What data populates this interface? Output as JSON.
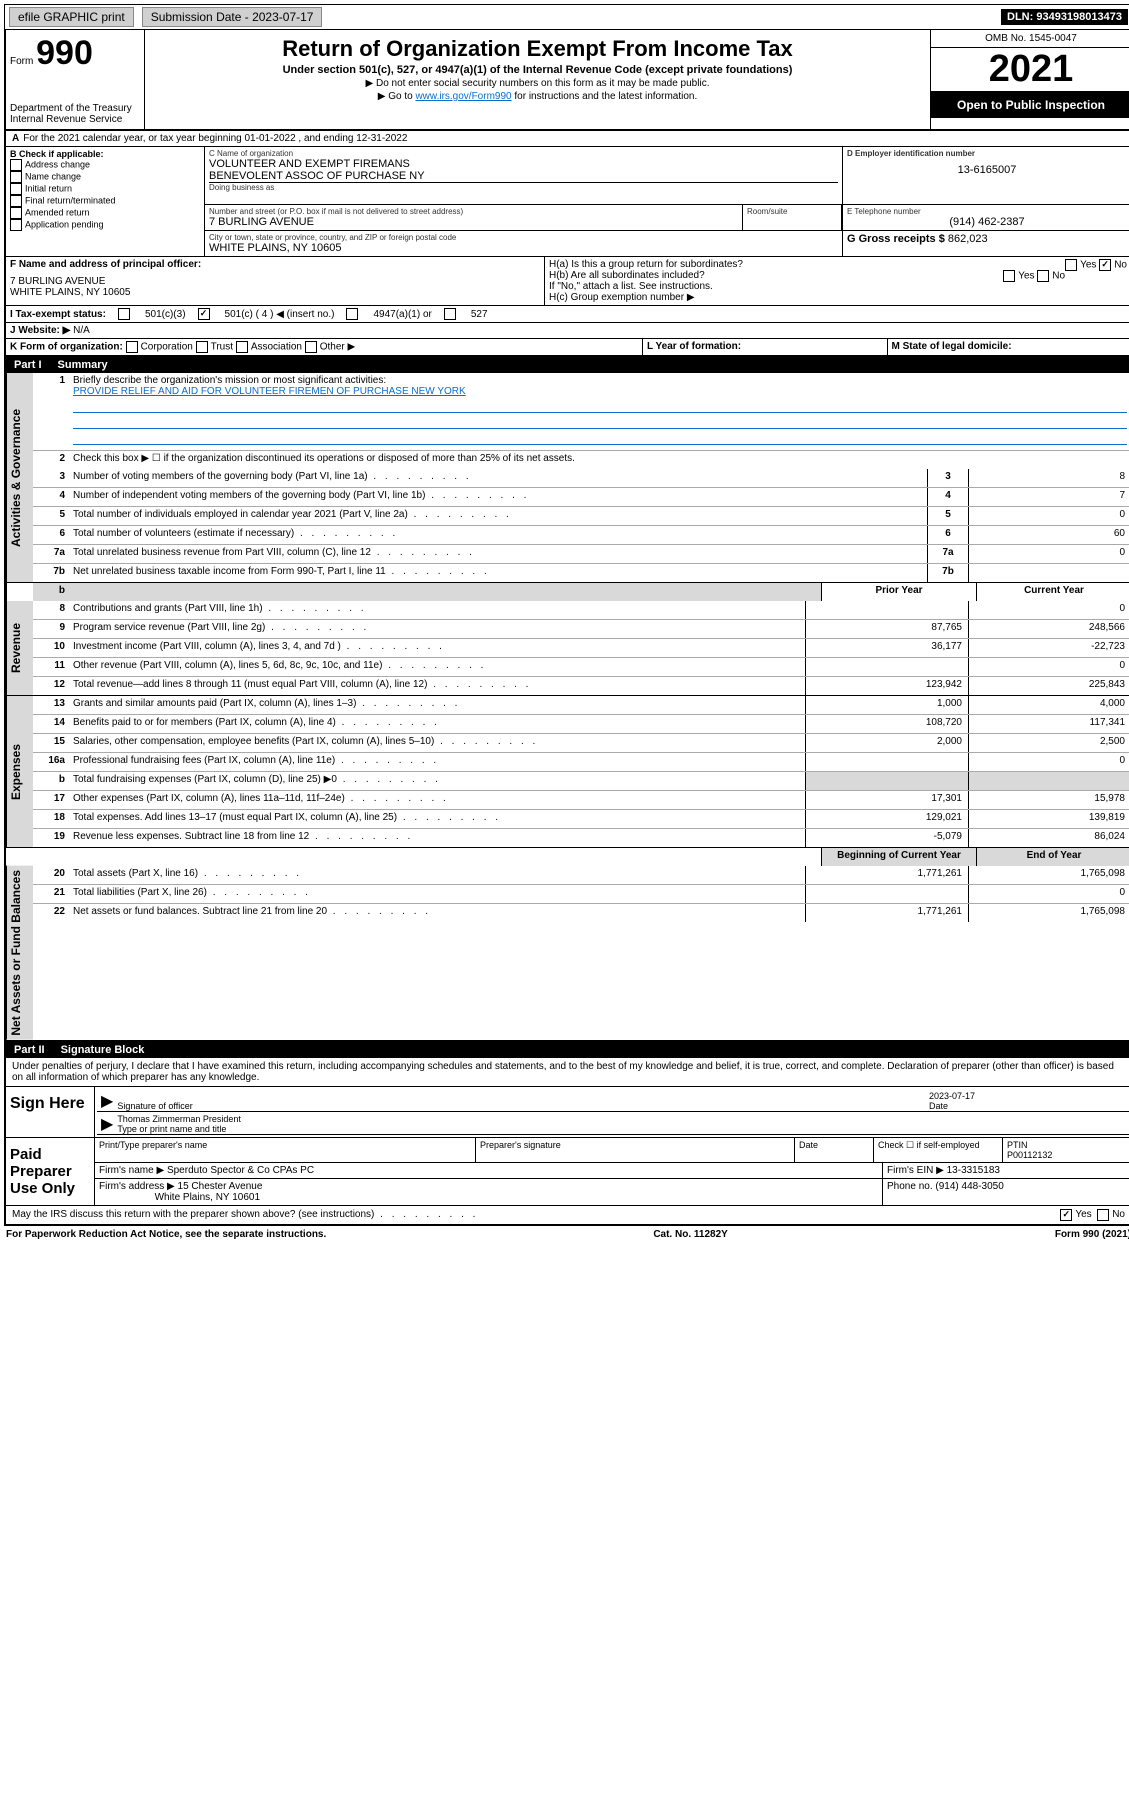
{
  "topbar": {
    "efile": "efile GRAPHIC print",
    "submission": "Submission Date - 2023-07-17",
    "dln": "DLN: 93493198013473"
  },
  "header": {
    "form_word": "Form",
    "form_num": "990",
    "title": "Return of Organization Exempt From Income Tax",
    "subtitle": "Under section 501(c), 527, or 4947(a)(1) of the Internal Revenue Code (except private foundations)",
    "note1": "▶ Do not enter social security numbers on this form as it may be made public.",
    "note2_prefix": "▶ Go to ",
    "note2_link": "www.irs.gov/Form990",
    "note2_suffix": " for instructions and the latest information.",
    "dept": "Department of the Treasury",
    "irs": "Internal Revenue Service",
    "omb": "OMB No. 1545-0047",
    "year": "2021",
    "inspect": "Open to Public Inspection"
  },
  "line_a": "For the 2021 calendar year, or tax year beginning 01-01-2022   , and ending 12-31-2022",
  "section_b": {
    "label": "B Check if applicable:",
    "items": [
      "Address change",
      "Name change",
      "Initial return",
      "Final return/terminated",
      "Amended return",
      "Application pending"
    ]
  },
  "org": {
    "c_label": "C Name of organization",
    "name1": "VOLUNTEER AND EXEMPT FIREMANS",
    "name2": "BENEVOLENT ASSOC OF PURCHASE NY",
    "dba_label": "Doing business as",
    "addr_label": "Number and street (or P.O. box if mail is not delivered to street address)",
    "room_label": "Room/suite",
    "addr": "7 BURLING AVENUE",
    "city_label": "City or town, state or province, country, and ZIP or foreign postal code",
    "city": "WHITE PLAINS, NY  10605"
  },
  "ein": {
    "label": "D Employer identification number",
    "value": "13-6165007"
  },
  "phone": {
    "label": "E Telephone number",
    "value": "(914) 462-2387"
  },
  "gross": {
    "label": "G Gross receipts $",
    "value": "862,023"
  },
  "f_block": {
    "label": "F  Name and address of principal officer:",
    "addr1": "7 BURLING AVENUE",
    "addr2": "WHITE PLAINS, NY  10605"
  },
  "h_block": {
    "ha": "H(a)  Is this a group return for subordinates?",
    "hb": "H(b)  Are all subordinates included?",
    "hb_note": "If \"No,\" attach a list. See instructions.",
    "hc": "H(c)  Group exemption number ▶",
    "yes": "Yes",
    "no": "No"
  },
  "i_status": {
    "label": "I   Tax-exempt status:",
    "c3": "501(c)(3)",
    "c": "501(c) ( 4 ) ◀ (insert no.)",
    "t4947": "4947(a)(1) or",
    "t527": "527"
  },
  "j_web": {
    "label": "J   Website: ▶",
    "value": "N/A"
  },
  "k_form": {
    "label": "K Form of organization:",
    "corp": "Corporation",
    "trust": "Trust",
    "assoc": "Association",
    "other": "Other ▶"
  },
  "l_year": "L Year of formation:",
  "m_state": "M State of legal domicile:",
  "part1": {
    "num": "Part I",
    "title": "Summary"
  },
  "summary": {
    "q1": "Briefly describe the organization's mission or most significant activities:",
    "mission": "PROVIDE RELIEF AND AID FOR VOLUNTEER FIREMEN OF PURCHASE NEW YORK",
    "q2": "Check this box ▶ ☐  if the organization discontinued its operations or disposed of more than 25% of its net assets.",
    "lines": {
      "3": {
        "t": "Number of voting members of the governing body (Part VI, line 1a)",
        "v": "8"
      },
      "4": {
        "t": "Number of independent voting members of the governing body (Part VI, line 1b)",
        "v": "7"
      },
      "5": {
        "t": "Total number of individuals employed in calendar year 2021 (Part V, line 2a)",
        "v": "0"
      },
      "6": {
        "t": "Total number of volunteers (estimate if necessary)",
        "v": "60"
      },
      "7a": {
        "t": "Total unrelated business revenue from Part VIII, column (C), line 12",
        "v": "0"
      },
      "7b": {
        "t": "Net unrelated business taxable income from Form 990-T, Part I, line 11",
        "v": ""
      }
    },
    "prior_label": "Prior Year",
    "current_label": "Current Year",
    "begin_label": "Beginning of Current Year",
    "end_label": "End of Year"
  },
  "side_labels": {
    "gov": "Activities & Governance",
    "rev": "Revenue",
    "exp": "Expenses",
    "net": "Net Assets or Fund Balances"
  },
  "revenue": [
    {
      "n": "8",
      "t": "Contributions and grants (Part VIII, line 1h)",
      "p": "",
      "c": "0"
    },
    {
      "n": "9",
      "t": "Program service revenue (Part VIII, line 2g)",
      "p": "87,765",
      "c": "248,566"
    },
    {
      "n": "10",
      "t": "Investment income (Part VIII, column (A), lines 3, 4, and 7d )",
      "p": "36,177",
      "c": "-22,723"
    },
    {
      "n": "11",
      "t": "Other revenue (Part VIII, column (A), lines 5, 6d, 8c, 9c, 10c, and 11e)",
      "p": "",
      "c": "0"
    },
    {
      "n": "12",
      "t": "Total revenue—add lines 8 through 11 (must equal Part VIII, column (A), line 12)",
      "p": "123,942",
      "c": "225,843"
    }
  ],
  "expenses": [
    {
      "n": "13",
      "t": "Grants and similar amounts paid (Part IX, column (A), lines 1–3)",
      "p": "1,000",
      "c": "4,000"
    },
    {
      "n": "14",
      "t": "Benefits paid to or for members (Part IX, column (A), line 4)",
      "p": "108,720",
      "c": "117,341"
    },
    {
      "n": "15",
      "t": "Salaries, other compensation, employee benefits (Part IX, column (A), lines 5–10)",
      "p": "2,000",
      "c": "2,500"
    },
    {
      "n": "16a",
      "t": "Professional fundraising fees (Part IX, column (A), line 11e)",
      "p": "",
      "c": "0"
    },
    {
      "n": "b",
      "t": "Total fundraising expenses (Part IX, column (D), line 25) ▶0",
      "p": "",
      "c": "",
      "shaded": true
    },
    {
      "n": "17",
      "t": "Other expenses (Part IX, column (A), lines 11a–11d, 11f–24e)",
      "p": "17,301",
      "c": "15,978"
    },
    {
      "n": "18",
      "t": "Total expenses. Add lines 13–17 (must equal Part IX, column (A), line 25)",
      "p": "129,021",
      "c": "139,819"
    },
    {
      "n": "19",
      "t": "Revenue less expenses. Subtract line 18 from line 12",
      "p": "-5,079",
      "c": "86,024"
    }
  ],
  "netassets": [
    {
      "n": "20",
      "t": "Total assets (Part X, line 16)",
      "p": "1,771,261",
      "c": "1,765,098"
    },
    {
      "n": "21",
      "t": "Total liabilities (Part X, line 26)",
      "p": "",
      "c": "0"
    },
    {
      "n": "22",
      "t": "Net assets or fund balances. Subtract line 21 from line 20",
      "p": "1,771,261",
      "c": "1,765,098"
    }
  ],
  "part2": {
    "num": "Part II",
    "title": "Signature Block"
  },
  "penalty": "Under penalties of perjury, I declare that I have examined this return, including accompanying schedules and statements, and to the best of my knowledge and belief, it is true, correct, and complete. Declaration of preparer (other than officer) is based on all information of which preparer has any knowledge.",
  "sign": {
    "label": "Sign Here",
    "sig_officer": "Signature of officer",
    "date_label": "Date",
    "date": "2023-07-17",
    "name": "Thomas Zimmerman President",
    "name_label": "Type or print name and title"
  },
  "preparer": {
    "label": "Paid Preparer Use Only",
    "h1": "Print/Type preparer's name",
    "h2": "Preparer's signature",
    "h3": "Date",
    "check_label": "Check ☐ if self-employed",
    "ptin_label": "PTIN",
    "ptin": "P00112132",
    "firm_label": "Firm's name   ▶",
    "firm": "Sperduto Spector & Co CPAs PC",
    "ein_label": "Firm's EIN ▶",
    "ein": "13-3315183",
    "addr_label": "Firm's address ▶",
    "addr1": "15 Chester Avenue",
    "addr2": "White Plains, NY  10601",
    "phone_label": "Phone no.",
    "phone": "(914) 448-3050"
  },
  "discuss": "May the IRS discuss this return with the preparer shown above? (see instructions)",
  "discuss_yes": "Yes",
  "discuss_no": "No",
  "footer": {
    "left": "For Paperwork Reduction Act Notice, see the separate instructions.",
    "mid": "Cat. No. 11282Y",
    "right": "Form 990 (2021)"
  }
}
